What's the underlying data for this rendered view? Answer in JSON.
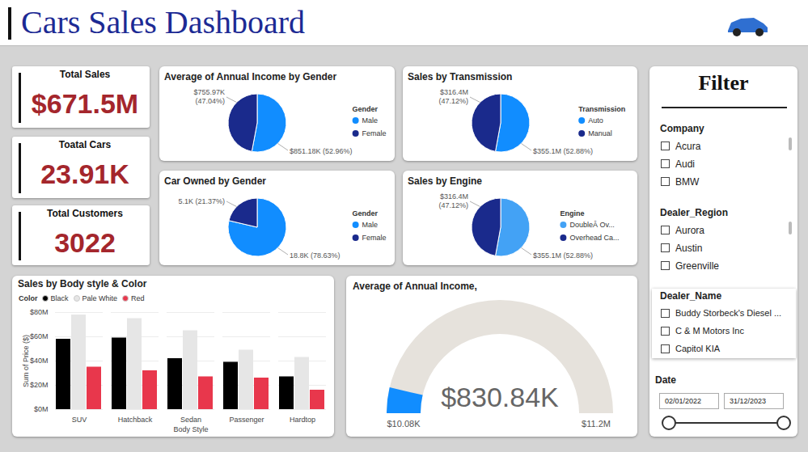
{
  "header": {
    "title": "Cars Sales Dashboard"
  },
  "kpis": [
    {
      "label": "Total Sales",
      "value": "$671.5M"
    },
    {
      "label": "Toatal Cars",
      "value": "23.91K"
    },
    {
      "label": "Total Customers",
      "value": "3022"
    }
  ],
  "chart_data": [
    {
      "type": "pie",
      "title": "Average of Annual Income by Gender",
      "legend_title": "Gender",
      "legend": "right",
      "categories": [
        "Male",
        "Female"
      ],
      "values": [
        851180,
        755970
      ],
      "value_labels": [
        "$851.18K (52.96%)",
        "$755.97K (47.04%)"
      ],
      "data_labels": true,
      "colors": [
        "#118dff",
        "#1a2a8c"
      ]
    },
    {
      "type": "pie",
      "title": "Sales by Transmission",
      "legend_title": "Transmission",
      "legend": "right",
      "categories": [
        "Auto",
        "Manual"
      ],
      "values": [
        355100000,
        316400000
      ],
      "value_labels": [
        "$355.1M (52.88%)",
        "$316.4M (47.12%)"
      ],
      "data_labels": true,
      "colors": [
        "#118dff",
        "#1a2a8c"
      ]
    },
    {
      "type": "pie",
      "title": "Car Owned by Gender",
      "legend_title": "Gender",
      "legend": "right",
      "categories": [
        "Male",
        "Female"
      ],
      "values": [
        18800,
        5100
      ],
      "value_labels": [
        "18.8K (78.63%)",
        "5.1K (21.37%)"
      ],
      "data_labels": true,
      "colors": [
        "#118dff",
        "#1a2a8c"
      ]
    },
    {
      "type": "pie",
      "title": "Sales by Engine",
      "legend_title": "Engine",
      "legend": "right",
      "categories": [
        "DoubleÂ Ov...",
        "Overhead Ca..."
      ],
      "values": [
        355100000,
        316400000
      ],
      "value_labels": [
        "$355.1M (52.88%)",
        "$316.4M (47.12%)"
      ],
      "data_labels": true,
      "colors": [
        "#43a2f5",
        "#1a2a8c"
      ]
    },
    {
      "type": "bar",
      "title": "Sales by Body style & Color",
      "xlabel": "Body Style",
      "ylabel": "Sum of Price ($)",
      "legend_title": "Color",
      "legend": "top-left",
      "grid": true,
      "categories": [
        "SUV",
        "Hatchback",
        "Sedan",
        "Passenger",
        "Hardtop"
      ],
      "series": [
        {
          "name": "Black",
          "color": "#000000",
          "values": [
            58,
            59,
            42,
            39,
            27
          ]
        },
        {
          "name": "Pale White",
          "color": "#e6e6e6",
          "values": [
            78,
            75,
            65,
            49,
            43
          ]
        },
        {
          "name": "Red",
          "color": "#e8374c",
          "values": [
            35,
            32,
            27,
            26,
            16
          ]
        }
      ],
      "ylim": [
        0,
        80
      ],
      "yticks": [
        {
          "value": 0,
          "label": "$0M"
        },
        {
          "value": 20,
          "label": "$20M"
        },
        {
          "value": 40,
          "label": "$40M"
        },
        {
          "value": 60,
          "label": "$60M"
        },
        {
          "value": 80,
          "label": "$80M"
        }
      ]
    },
    {
      "type": "gauge",
      "title": "Average of Annual Income,",
      "color": "#118dff",
      "values": [
        830840
      ],
      "value_labels": [
        "$830.84K"
      ],
      "xlim": [
        10080,
        11200000
      ],
      "xticks": [
        {
          "value": 10080,
          "label": "$10.08K"
        },
        {
          "value": 11200000,
          "label": "$11.2M"
        }
      ]
    }
  ],
  "filter": {
    "title": "Filter",
    "sections": [
      {
        "title": "Company",
        "items": [
          "Acura",
          "Audi",
          "BMW"
        ]
      },
      {
        "title": "Dealer_Region",
        "items": [
          "Aurora",
          "Austin",
          "Greenville"
        ]
      },
      {
        "title": "Dealer_Name",
        "items": [
          "Buddy Storbeck's Diesel ...",
          "C & M Motors Inc",
          "Capitol KIA"
        ]
      }
    ],
    "date": {
      "title": "Date",
      "from": "02/01/2022",
      "to": "31/12/2023"
    }
  }
}
